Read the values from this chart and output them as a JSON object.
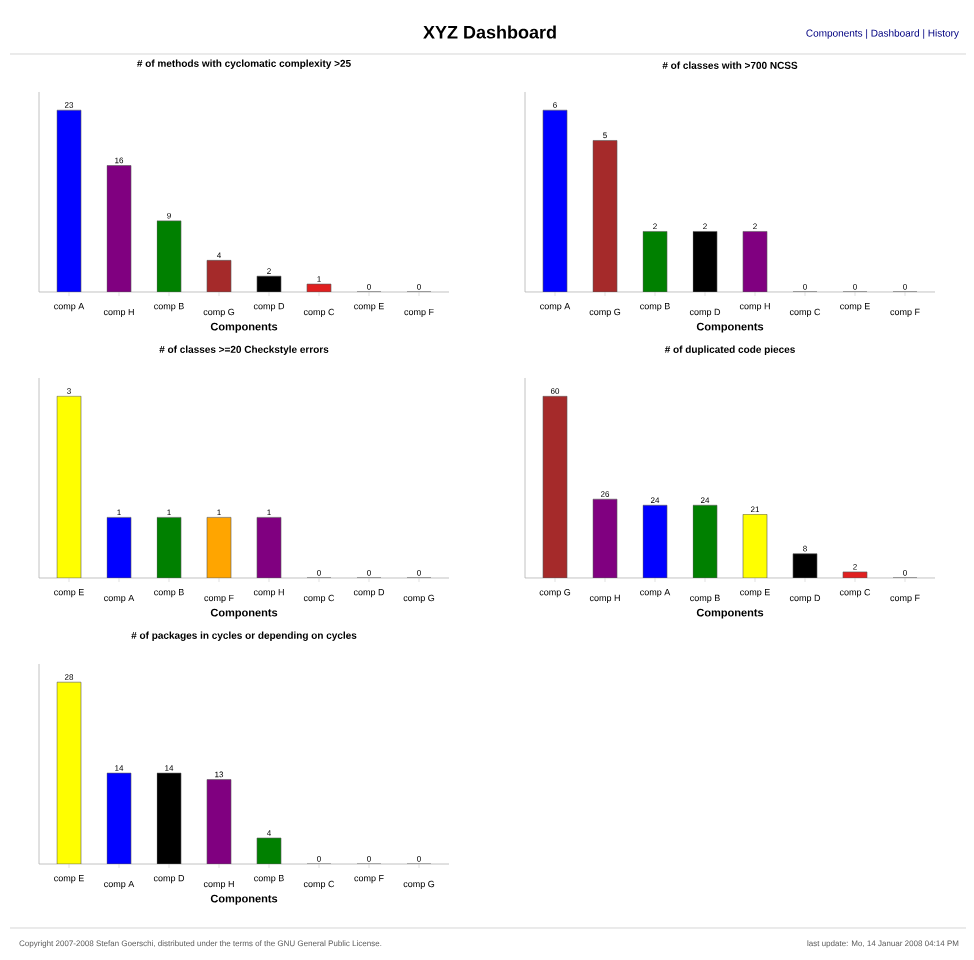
{
  "chart_data": [
    {
      "type": "bar",
      "title": "# of methods with cyclomatic complexity >25",
      "xlabel": "Components",
      "categories": [
        "comp A",
        "comp H",
        "comp B",
        "comp G",
        "comp D",
        "comp C",
        "comp E",
        "comp F"
      ],
      "values": [
        23,
        16,
        9,
        4,
        2,
        1,
        0,
        0
      ],
      "colors": [
        "#0000ff",
        "#800080",
        "#008000",
        "#a52a2a",
        "#000000",
        "#e02020",
        "#ffff00",
        "#ffa500"
      ],
      "data_labels": true
    },
    {
      "type": "bar",
      "title": "# of classes with >700 NCSS",
      "xlabel": "Components",
      "categories": [
        "comp A",
        "comp G",
        "comp B",
        "comp D",
        "comp H",
        "comp C",
        "comp E",
        "comp F"
      ],
      "values": [
        6,
        5,
        2,
        2,
        2,
        0,
        0,
        0
      ],
      "colors": [
        "#0000ff",
        "#a52a2a",
        "#008000",
        "#000000",
        "#800080",
        "#e02020",
        "#ffff00",
        "#ffa500"
      ],
      "data_labels": true
    },
    {
      "type": "bar",
      "title": "# of classes >=20 Checkstyle errors",
      "xlabel": "Components",
      "categories": [
        "comp E",
        "comp A",
        "comp B",
        "comp F",
        "comp H",
        "comp C",
        "comp D",
        "comp G"
      ],
      "values": [
        3,
        1,
        1,
        1,
        1,
        0,
        0,
        0
      ],
      "colors": [
        "#ffff00",
        "#0000ff",
        "#008000",
        "#ffa500",
        "#800080",
        "#e02020",
        "#000000",
        "#a52a2a"
      ],
      "data_labels": true
    },
    {
      "type": "bar",
      "title": "# of duplicated code pieces",
      "xlabel": "Components",
      "categories": [
        "comp G",
        "comp H",
        "comp A",
        "comp B",
        "comp E",
        "comp D",
        "comp C",
        "comp F"
      ],
      "values": [
        60,
        26,
        24,
        24,
        21,
        8,
        2,
        0
      ],
      "colors": [
        "#a52a2a",
        "#800080",
        "#0000ff",
        "#008000",
        "#ffff00",
        "#000000",
        "#e02020",
        "#ffa500"
      ],
      "data_labels": true
    },
    {
      "type": "bar",
      "title": "# of packages in cycles or depending on cycles",
      "xlabel": "Components",
      "categories": [
        "comp E",
        "comp A",
        "comp D",
        "comp H",
        "comp B",
        "comp C",
        "comp F",
        "comp G"
      ],
      "values": [
        28,
        14,
        14,
        13,
        4,
        0,
        0,
        0
      ],
      "colors": [
        "#ffff00",
        "#0000ff",
        "#000000",
        "#800080",
        "#008000",
        "#e02020",
        "#ffa500",
        "#a52a2a"
      ],
      "data_labels": true
    },
    {
      "type": "other",
      "title": "XYZ Dashboard",
      "annotations": [
        "Components | Dashboard | History",
        "Copyright 2007-2008 Stefan Goerschi, distributed under the terms of the GNU General Public License.",
        "last update: Mo, 14 Januar 2008 04:14 PM"
      ]
    }
  ]
}
